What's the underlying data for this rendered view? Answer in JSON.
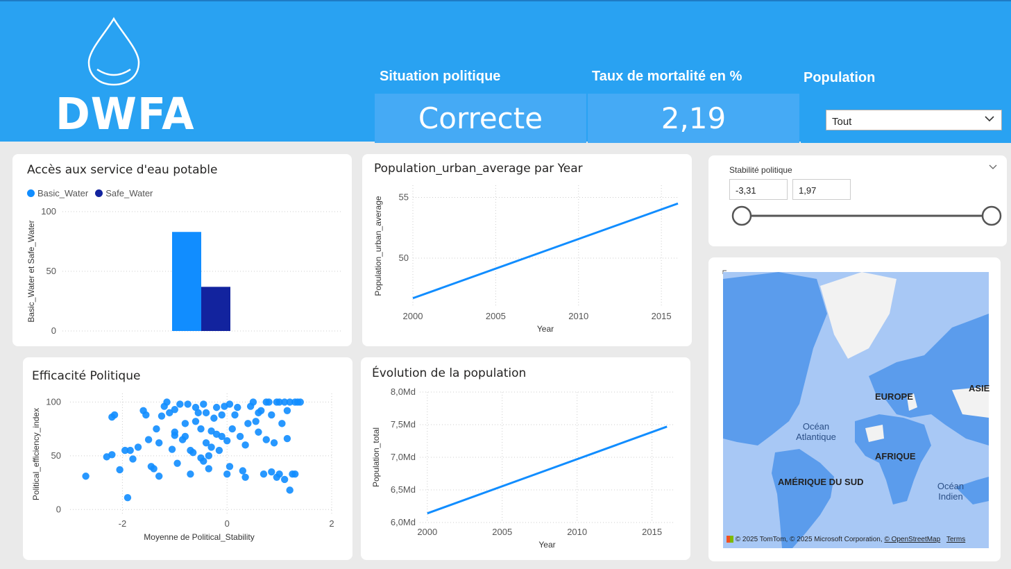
{
  "header": {
    "logo_text": "DWFA",
    "kpis": [
      {
        "label": "Situation politique",
        "value": "Correcte"
      },
      {
        "label": "Taux de mortalité en %",
        "value": "2,19"
      },
      {
        "label": "Population"
      }
    ],
    "population_filter": {
      "selected": "Tout"
    }
  },
  "cards": {
    "water_access": {
      "title": "Accès aux service d'eau potable",
      "legend": [
        {
          "name": "Basic_Water",
          "color": "#118dff"
        },
        {
          "name": "Safe_Water",
          "color": "#12239e"
        }
      ],
      "ylabel": "Basic_Water et Safe_Water"
    },
    "urban": {
      "title": "Population_urban_average par Year"
    },
    "political": {
      "title": "Efficacité Politique"
    },
    "population": {
      "title": "Évolution de la population"
    },
    "slicer": {
      "title": "Stabilité politique",
      "min": "-3,31",
      "max": "1,97",
      "range_low_fraction": 0,
      "range_high_fraction": 1
    }
  },
  "map": {
    "labels": {
      "europe": "EUROPE",
      "asie": "ASIE",
      "ocean_atl_1": "Océan",
      "ocean_atl_2": "Atlantique",
      "afrique": "AFRIQUE",
      "amerique": "AMÉRIQUE DU SUD",
      "ocean_ind_1": "Océan",
      "ocean_ind_2": "Indien"
    },
    "attribution": "© 2025 TomTom, © 2025 Microsoft Corporation,",
    "osm_link": "© OpenStreetMap",
    "terms_link": "Terms"
  },
  "chart_data": [
    {
      "type": "bar",
      "title": "Accès aux service d'eau potable",
      "xlabel": "",
      "ylabel": "Basic_Water et Safe_Water",
      "ylim": [
        0,
        100
      ],
      "yticks": [
        "0",
        "50",
        "100"
      ],
      "categories": [
        ""
      ],
      "series": [
        {
          "name": "Basic_Water",
          "values": [
            83
          ],
          "color": "#118dff"
        },
        {
          "name": "Safe_Water",
          "values": [
            37
          ],
          "color": "#12239e"
        }
      ],
      "legend": "top-left",
      "grid": true
    },
    {
      "type": "line",
      "title": "Population_urban_average par Year",
      "xlabel": "Year",
      "ylabel": "Population_urban_average",
      "xlim": [
        2000,
        2016
      ],
      "ylim": [
        46,
        56
      ],
      "xticks": [
        "2000",
        "2005",
        "2010",
        "2015"
      ],
      "yticks": [
        "50",
        "55"
      ],
      "x": [
        2000,
        2016
      ],
      "series": [
        {
          "values": [
            46.7,
            54.5
          ],
          "color": "#118dff"
        }
      ],
      "grid": true
    },
    {
      "type": "scatter",
      "title": "Efficacité Politique",
      "xlabel": "Moyenne de Political_Stability",
      "ylabel": "Political_efficiency_index",
      "xlim": [
        -3,
        2
      ],
      "ylim": [
        -5,
        108
      ],
      "xticks": [
        "-2",
        "0",
        "2"
      ],
      "yticks": [
        "0",
        "50",
        "100"
      ],
      "color": "#118dff",
      "points": [
        [
          -2.7,
          31
        ],
        [
          -2.3,
          49
        ],
        [
          -2.2,
          86
        ],
        [
          -2.15,
          88
        ],
        [
          -2.2,
          51
        ],
        [
          -2.05,
          37
        ],
        [
          -1.95,
          55
        ],
        [
          -1.9,
          11
        ],
        [
          -1.85,
          55
        ],
        [
          -1.8,
          47
        ],
        [
          -1.7,
          58
        ],
        [
          -1.6,
          92
        ],
        [
          -1.55,
          88
        ],
        [
          -1.5,
          65
        ],
        [
          -1.45,
          40
        ],
        [
          -1.4,
          38
        ],
        [
          -1.35,
          75
        ],
        [
          -1.3,
          62
        ],
        [
          -1.3,
          31
        ],
        [
          -1.25,
          87
        ],
        [
          -1.2,
          96
        ],
        [
          -1.15,
          100
        ],
        [
          -1.1,
          90
        ],
        [
          -1.05,
          56
        ],
        [
          -1.0,
          69
        ],
        [
          -1.0,
          72
        ],
        [
          -1.0,
          93
        ],
        [
          -0.95,
          43
        ],
        [
          -0.9,
          98
        ],
        [
          -0.85,
          65
        ],
        [
          -0.8,
          80
        ],
        [
          -0.75,
          98
        ],
        [
          -0.7,
          33
        ],
        [
          -0.7,
          55
        ],
        [
          -0.65,
          53
        ],
        [
          -0.6,
          95
        ],
        [
          -0.55,
          90
        ],
        [
          -0.5,
          48
        ],
        [
          -0.5,
          75
        ],
        [
          -0.45,
          98
        ],
        [
          -0.4,
          90
        ],
        [
          -0.4,
          62
        ],
        [
          -0.35,
          38
        ],
        [
          -0.35,
          50
        ],
        [
          -0.3,
          73
        ],
        [
          -0.3,
          58
        ],
        [
          -0.25,
          85
        ],
        [
          -0.2,
          95
        ],
        [
          -0.2,
          70
        ],
        [
          -0.15,
          55
        ],
        [
          -0.1,
          88
        ],
        [
          -0.1,
          68
        ],
        [
          -0.05,
          96
        ],
        [
          0.0,
          33
        ],
        [
          0.0,
          64
        ],
        [
          0.05,
          98
        ],
        [
          0.05,
          40
        ],
        [
          0.1,
          75
        ],
        [
          0.15,
          88
        ],
        [
          0.2,
          95
        ],
        [
          0.25,
          68
        ],
        [
          0.3,
          36
        ],
        [
          0.35,
          30
        ],
        [
          0.4,
          80
        ],
        [
          0.45,
          96
        ],
        [
          0.5,
          100
        ],
        [
          0.55,
          82
        ],
        [
          0.6,
          72
        ],
        [
          0.65,
          92
        ],
        [
          0.7,
          33
        ],
        [
          0.75,
          100
        ],
        [
          0.8,
          100
        ],
        [
          0.85,
          88
        ],
        [
          0.9,
          62
        ],
        [
          0.95,
          100
        ],
        [
          1.0,
          33
        ],
        [
          1.0,
          100
        ],
        [
          1.05,
          80
        ],
        [
          1.1,
          100
        ],
        [
          1.15,
          66
        ],
        [
          1.2,
          100
        ],
        [
          1.25,
          33
        ],
        [
          1.3,
          100
        ],
        [
          1.35,
          100
        ],
        [
          1.4,
          100
        ],
        [
          1.1,
          28
        ],
        [
          1.2,
          18
        ],
        [
          1.3,
          33
        ],
        [
          0.85,
          35
        ],
        [
          0.95,
          30
        ],
        [
          -0.8,
          68
        ],
        [
          -0.6,
          82
        ],
        [
          -0.45,
          45
        ],
        [
          0.35,
          60
        ],
        [
          0.6,
          90
        ],
        [
          0.75,
          65
        ],
        [
          1.15,
          92
        ]
      ],
      "grid": true
    },
    {
      "type": "line",
      "title": "Évolution de la population",
      "xlabel": "Year",
      "ylabel": "Population_total",
      "xlim": [
        1999.5,
        2016.5
      ],
      "ylim": [
        6.0,
        8.0
      ],
      "xticks": [
        "2000",
        "2005",
        "2010",
        "2015"
      ],
      "yticks": [
        "6,0Md",
        "6,5Md",
        "7,0Md",
        "7,5Md",
        "8,0Md"
      ],
      "x": [
        2000,
        2016
      ],
      "series": [
        {
          "values": [
            6.14,
            7.47
          ],
          "color": "#118dff"
        }
      ],
      "grid": true
    }
  ]
}
